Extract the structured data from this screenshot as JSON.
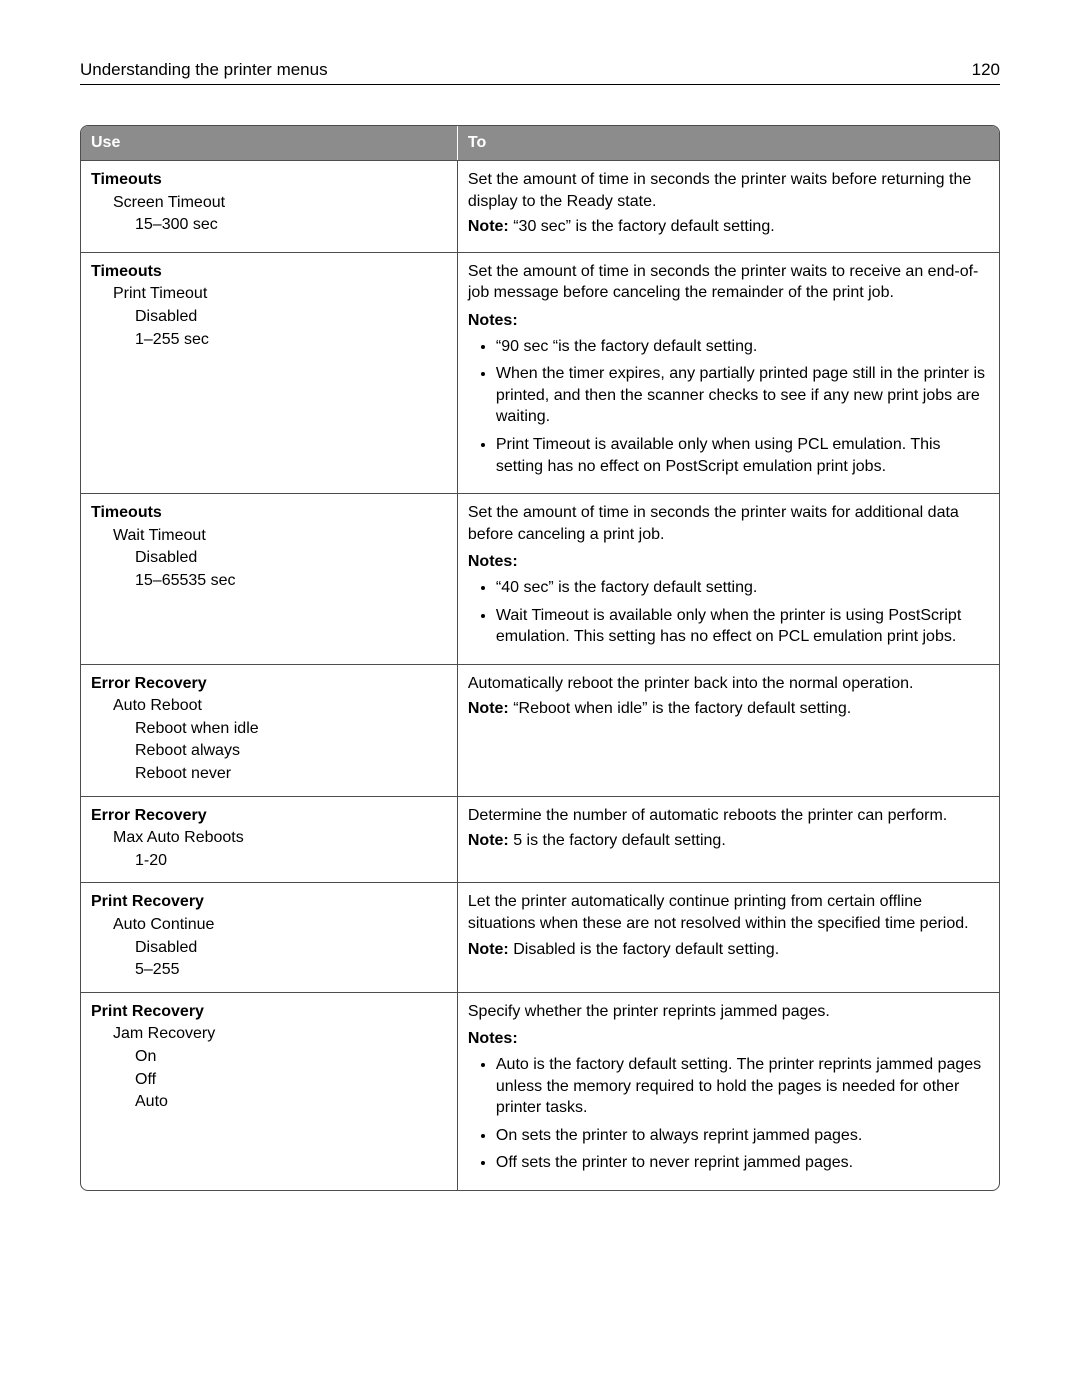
{
  "page": {
    "header_title": "Understanding the printer menus",
    "page_number": "120"
  },
  "table": {
    "header_use": "Use",
    "header_to": "To",
    "rows": [
      {
        "use": [
          {
            "text": "Timeouts",
            "level": 0
          },
          {
            "text": "Screen Timeout",
            "level": 1
          },
          {
            "text": "15–300 sec",
            "level": 2
          }
        ],
        "desc": "Set the amount of time in seconds the printer waits before returning the display to the Ready state.",
        "note_label": "Note:",
        "note": " “30 sec” is the factory default setting."
      },
      {
        "use": [
          {
            "text": "Timeouts",
            "level": 0
          },
          {
            "text": "Print Timeout",
            "level": 1
          },
          {
            "text": "Disabled",
            "level": 2
          },
          {
            "text": "1–255 sec",
            "level": 2
          }
        ],
        "desc": "Set the amount of time in seconds the printer waits to receive an end-of-job message before canceling the remainder of the print job.",
        "notes_label": "Notes:",
        "bullets": [
          "“90 sec “is the factory default setting.",
          "When the timer expires, any partially printed page still in the printer is printed, and then the scanner checks to see if any new print jobs are waiting.",
          "Print Timeout is available only when using PCL emulation. This setting has no effect on PostScript emulation print jobs."
        ]
      },
      {
        "use": [
          {
            "text": "Timeouts",
            "level": 0
          },
          {
            "text": "Wait Timeout",
            "level": 1
          },
          {
            "text": "Disabled",
            "level": 2
          },
          {
            "text": "15–65535 sec",
            "level": 2
          }
        ],
        "desc": "Set the amount of time in seconds the printer waits for additional data before canceling a print job.",
        "notes_label": "Notes:",
        "bullets": [
          "“40 sec” is the factory default setting.",
          "Wait Timeout is available only when the printer is using PostScript emulation. This setting has no effect on PCL emulation print jobs."
        ]
      },
      {
        "use": [
          {
            "text": "Error Recovery",
            "level": 0
          },
          {
            "text": "Auto Reboot",
            "level": 1
          },
          {
            "text": "Reboot when idle",
            "level": 2
          },
          {
            "text": "Reboot always",
            "level": 2
          },
          {
            "text": "Reboot never",
            "level": 2
          }
        ],
        "desc": "Automatically reboot the printer back into the normal operation.",
        "note_label": "Note:",
        "note": " “Reboot when idle” is the factory default setting."
      },
      {
        "use": [
          {
            "text": "Error Recovery",
            "level": 0
          },
          {
            "text": "Max Auto Reboots",
            "level": 1
          },
          {
            "text": "1-20",
            "level": 2
          }
        ],
        "desc": "Determine the number of automatic reboots the printer can perform.",
        "note_label": "Note:",
        "note": " 5 is the factory default setting."
      },
      {
        "use": [
          {
            "text": "Print Recovery",
            "level": 0
          },
          {
            "text": "Auto Continue",
            "level": 1
          },
          {
            "text": "Disabled",
            "level": 2
          },
          {
            "text": "5–255",
            "level": 2
          }
        ],
        "desc": "Let the printer automatically continue printing from certain offline situations when these are not resolved within the specified time period.",
        "note_label": "Note:",
        "note": " Disabled is the factory default setting."
      },
      {
        "use": [
          {
            "text": "Print Recovery",
            "level": 0
          },
          {
            "text": "Jam Recovery",
            "level": 1
          },
          {
            "text": "On",
            "level": 2
          },
          {
            "text": "Off",
            "level": 2
          },
          {
            "text": "Auto",
            "level": 2
          }
        ],
        "desc": "Specify whether the printer reprints jammed pages.",
        "notes_label": "Notes:",
        "bullets": [
          "Auto is the factory default setting. The printer reprints jammed pages unless the memory required to hold the pages is needed for other printer tasks.",
          "On sets the printer to always reprint jammed pages.",
          "Off sets the printer to never reprint jammed pages."
        ]
      }
    ]
  }
}
